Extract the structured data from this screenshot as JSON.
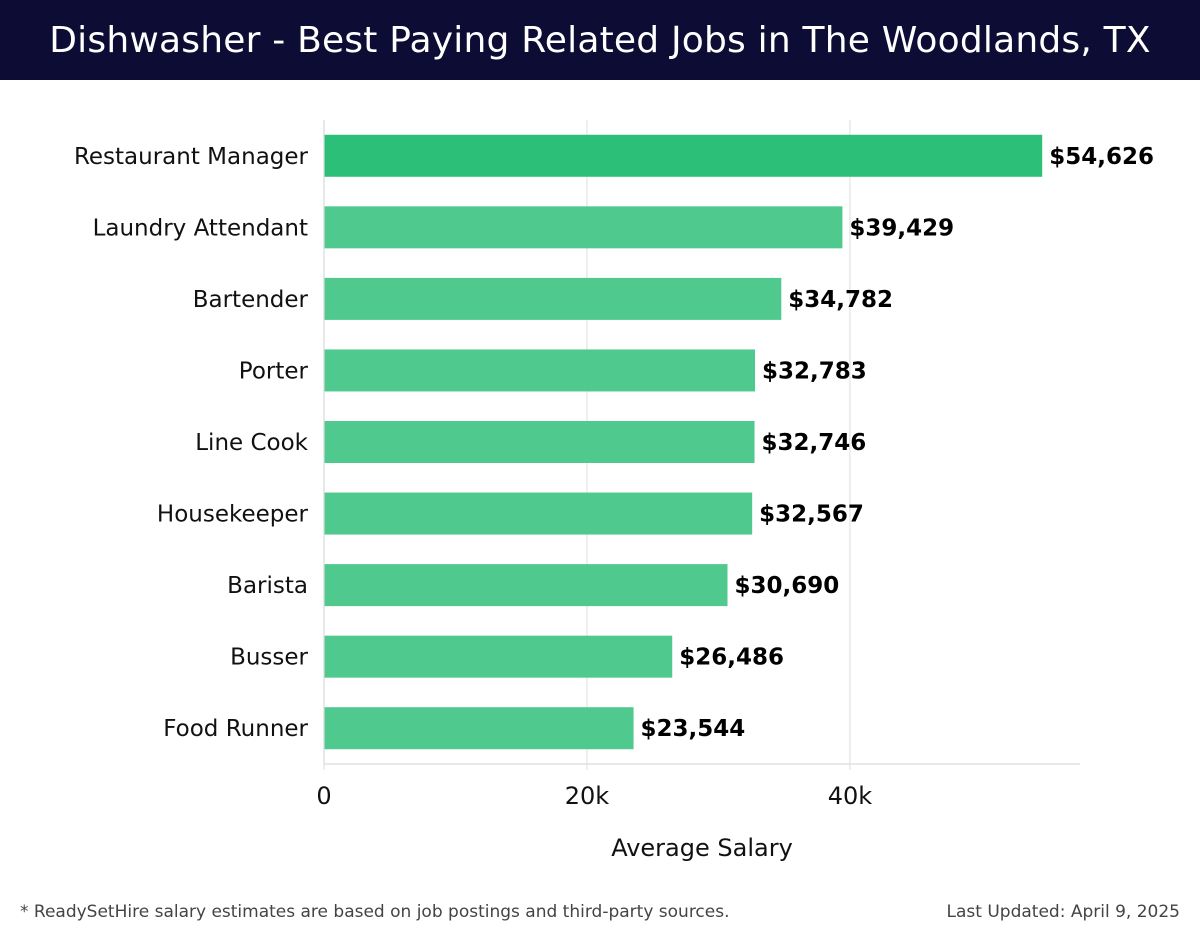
{
  "title": "Dishwasher - Best Paying Related Jobs in The Woodlands, TX",
  "footer": {
    "note": "* ReadySetHire salary estimates are based on job postings and third-party sources.",
    "updated": "Last Updated: April 9, 2025"
  },
  "colors": {
    "header_bg": "#0c0c34",
    "top_bar": "#2bbf78",
    "bar": "#4fc98d"
  },
  "chart_data": {
    "type": "bar",
    "orientation": "horizontal",
    "categories": [
      "Restaurant Manager",
      "Laundry Attendant",
      "Bartender",
      "Porter",
      "Line Cook",
      "Housekeeper",
      "Barista",
      "Busser",
      "Food Runner"
    ],
    "values": [
      54626,
      39429,
      34782,
      32783,
      32746,
      32567,
      30690,
      26486,
      23544
    ],
    "value_labels": [
      "$54,626",
      "$39,429",
      "$34,782",
      "$32,783",
      "$32,746",
      "$32,567",
      "$30,690",
      "$26,486",
      "$23,544"
    ],
    "xlabel": "Average Salary",
    "ylabel": "",
    "xlim": [
      0,
      57500
    ],
    "xticks": [
      0,
      20000,
      40000
    ],
    "xtick_labels": [
      "0",
      "20k",
      "40k"
    ],
    "grid": true
  }
}
